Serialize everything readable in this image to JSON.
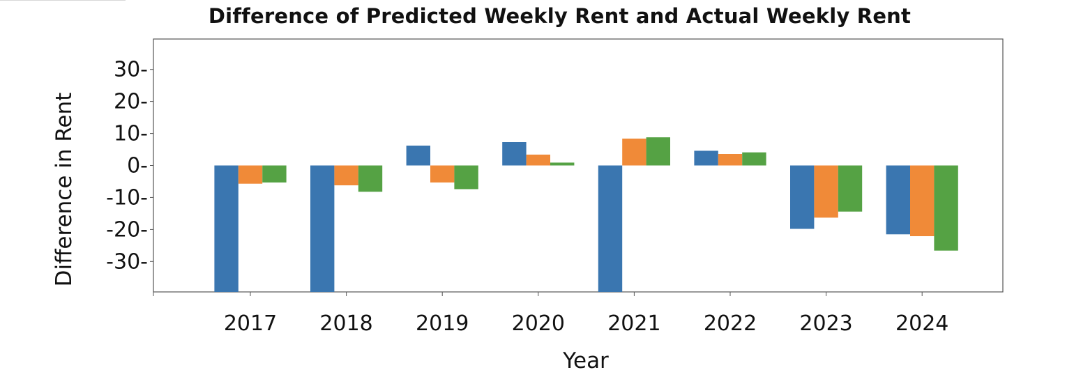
{
  "chart_data": {
    "type": "bar",
    "title": "Difference of Predicted Weekly Rent and Actual Weekly Rent",
    "xlabel": "Year",
    "ylabel": "Difference in Rent",
    "categories": [
      "2017",
      "2018",
      "2019",
      "2020",
      "2021",
      "2022",
      "2023",
      "2024"
    ],
    "yticks": [
      30,
      20,
      10,
      0,
      -10,
      -20,
      -30
    ],
    "ytick_labels": [
      "30-",
      "20-",
      "10-",
      "0-",
      "-10-",
      "-20-",
      "-30-"
    ],
    "ylim": [
      -39.5,
      39.5
    ],
    "grid": false,
    "series": [
      {
        "color": "#3a76b0",
        "values": [
          -41,
          -41,
          6.2,
          7.3,
          -41,
          4.6,
          -19.8,
          -21.5
        ]
      },
      {
        "color": "#f08a38",
        "values": [
          -5.7,
          -6.2,
          -5.3,
          3.4,
          8.4,
          3.6,
          -16.3,
          -22.1
        ]
      },
      {
        "color": "#55a244",
        "values": [
          -5.3,
          -8.2,
          -7.4,
          0.9,
          8.8,
          4.1,
          -14.4,
          -26.6
        ]
      }
    ]
  }
}
